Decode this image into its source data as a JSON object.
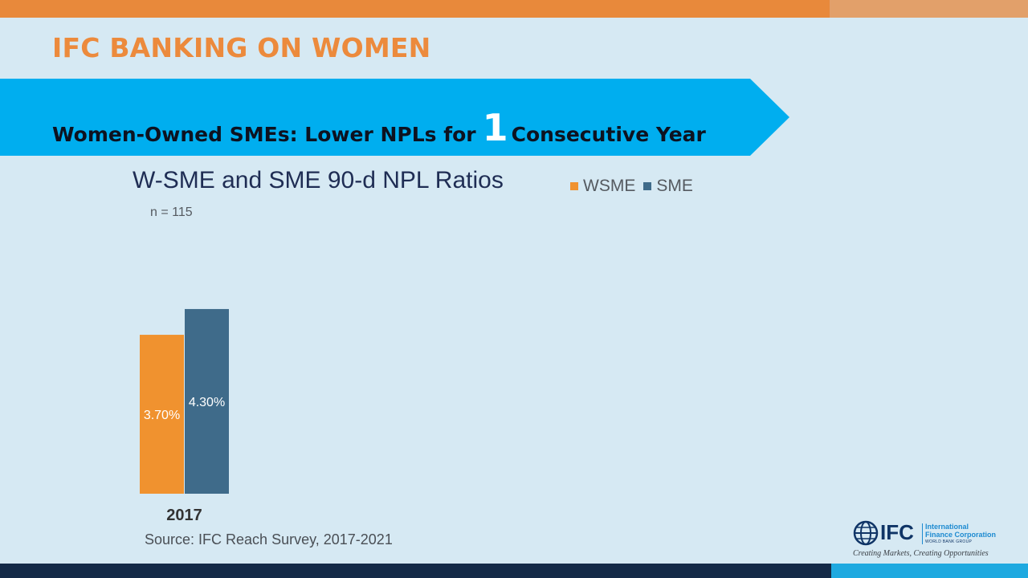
{
  "header": {
    "title": "IFC BANKING ON WOMEN",
    "banner_prefix": "Women-Owned SMEs: Lower NPLs for",
    "banner_number": "1",
    "banner_suffix": "Consecutive Year"
  },
  "chart_data": {
    "type": "bar",
    "title": "W-SME and SME 90-d NPL Ratios",
    "subtitle": "n = 115",
    "categories": [
      "2017"
    ],
    "series": [
      {
        "name": "WSME",
        "values": [
          3.7
        ],
        "labels": [
          "3.70%"
        ],
        "color": "#f0922f"
      },
      {
        "name": "SME",
        "values": [
          4.3
        ],
        "labels": [
          "4.30%"
        ],
        "color": "#3f6b8a"
      }
    ],
    "legend_position": "top-right"
  },
  "footer": {
    "source": "Source: IFC Reach Survey, 2017-2021"
  },
  "logo": {
    "abbr": "IFC",
    "line1": "International",
    "line2": "Finance Corporation",
    "group": "WORLD BANK GROUP",
    "tagline": "Creating Markets, Creating Opportunities"
  },
  "colors": {
    "accent_orange": "#e8893b",
    "banner_blue": "#00aeef",
    "background": "#d6e9f3",
    "navy": "#142a47"
  }
}
